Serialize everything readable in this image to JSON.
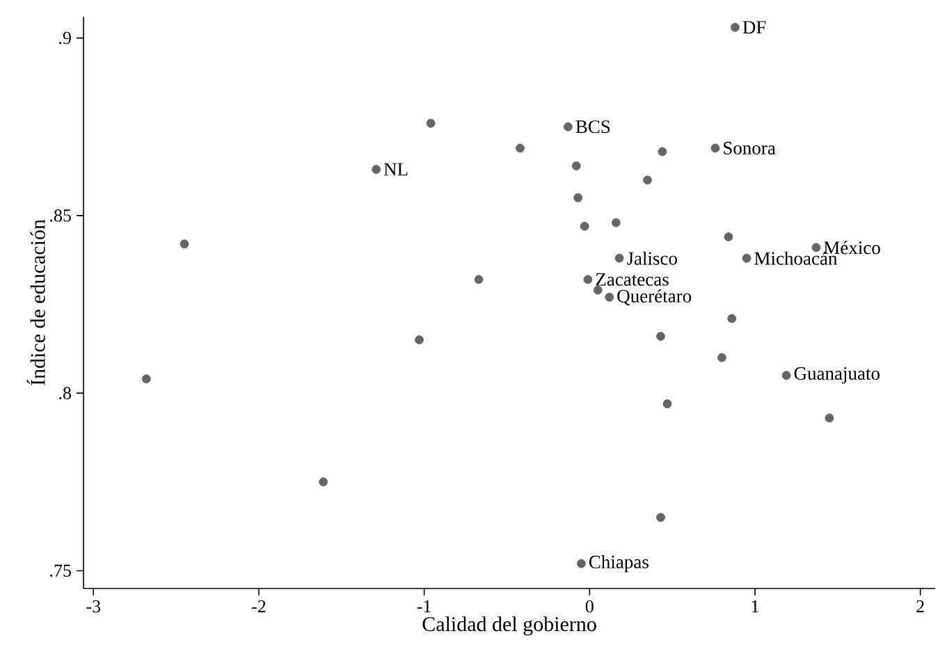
{
  "chart_data": {
    "type": "scatter",
    "xlabel": "Calidad del gobierno",
    "ylabel": "Índice de educación",
    "x": [
      0.88,
      -0.96,
      -0.42,
      -0.13,
      -1.29,
      -0.08,
      0.44,
      0.76,
      0.35,
      -0.07,
      -0.03,
      0.16,
      0.84,
      1.37,
      0.95,
      0.18,
      -2.45,
      -0.67,
      -0.01,
      0.05,
      0.12,
      -1.03,
      0.43,
      0.86,
      0.8,
      1.19,
      0.47,
      1.45,
      -2.68,
      -1.61,
      0.43,
      -0.05
    ],
    "values": [
      0.903,
      0.876,
      0.869,
      0.875,
      0.863,
      0.864,
      0.868,
      0.869,
      0.86,
      0.855,
      0.847,
      0.848,
      0.844,
      0.841,
      0.838,
      0.838,
      0.842,
      0.832,
      0.832,
      0.829,
      0.827,
      0.815,
      0.816,
      0.821,
      0.81,
      0.805,
      0.797,
      0.793,
      0.804,
      0.775,
      0.765,
      0.752
    ],
    "color": "#666666",
    "marker": "circle",
    "xlim": [
      -3.06,
      2.09
    ],
    "ylim": [
      0.745,
      0.906
    ],
    "xticks": [
      -3,
      -2,
      -1,
      0,
      1,
      2
    ],
    "yticks": [
      {
        "value": 0.75,
        "label": ".75"
      },
      {
        "value": 0.8,
        "label": ".8"
      },
      {
        "value": 0.85,
        "label": ".85"
      },
      {
        "value": 0.9,
        "label": ".9"
      }
    ],
    "annotations": [
      {
        "text": "DF",
        "x": 0.88,
        "y": 0.903
      },
      {
        "text": "BCS",
        "x": -0.13,
        "y": 0.875
      },
      {
        "text": "NL",
        "x": -1.29,
        "y": 0.863
      },
      {
        "text": "Sonora",
        "x": 0.76,
        "y": 0.869
      },
      {
        "text": "México",
        "x": 1.37,
        "y": 0.841
      },
      {
        "text": "Michoacán",
        "x": 0.95,
        "y": 0.838
      },
      {
        "text": "Jalisco",
        "x": 0.18,
        "y": 0.838
      },
      {
        "text": "Zacatecas",
        "x": -0.01,
        "y": 0.832
      },
      {
        "text": "Querétaro",
        "x": 0.12,
        "y": 0.827
      },
      {
        "text": "Guanajuato",
        "x": 1.19,
        "y": 0.805
      },
      {
        "text": "Chiapas",
        "x": -0.05,
        "y": 0.752
      }
    ]
  }
}
